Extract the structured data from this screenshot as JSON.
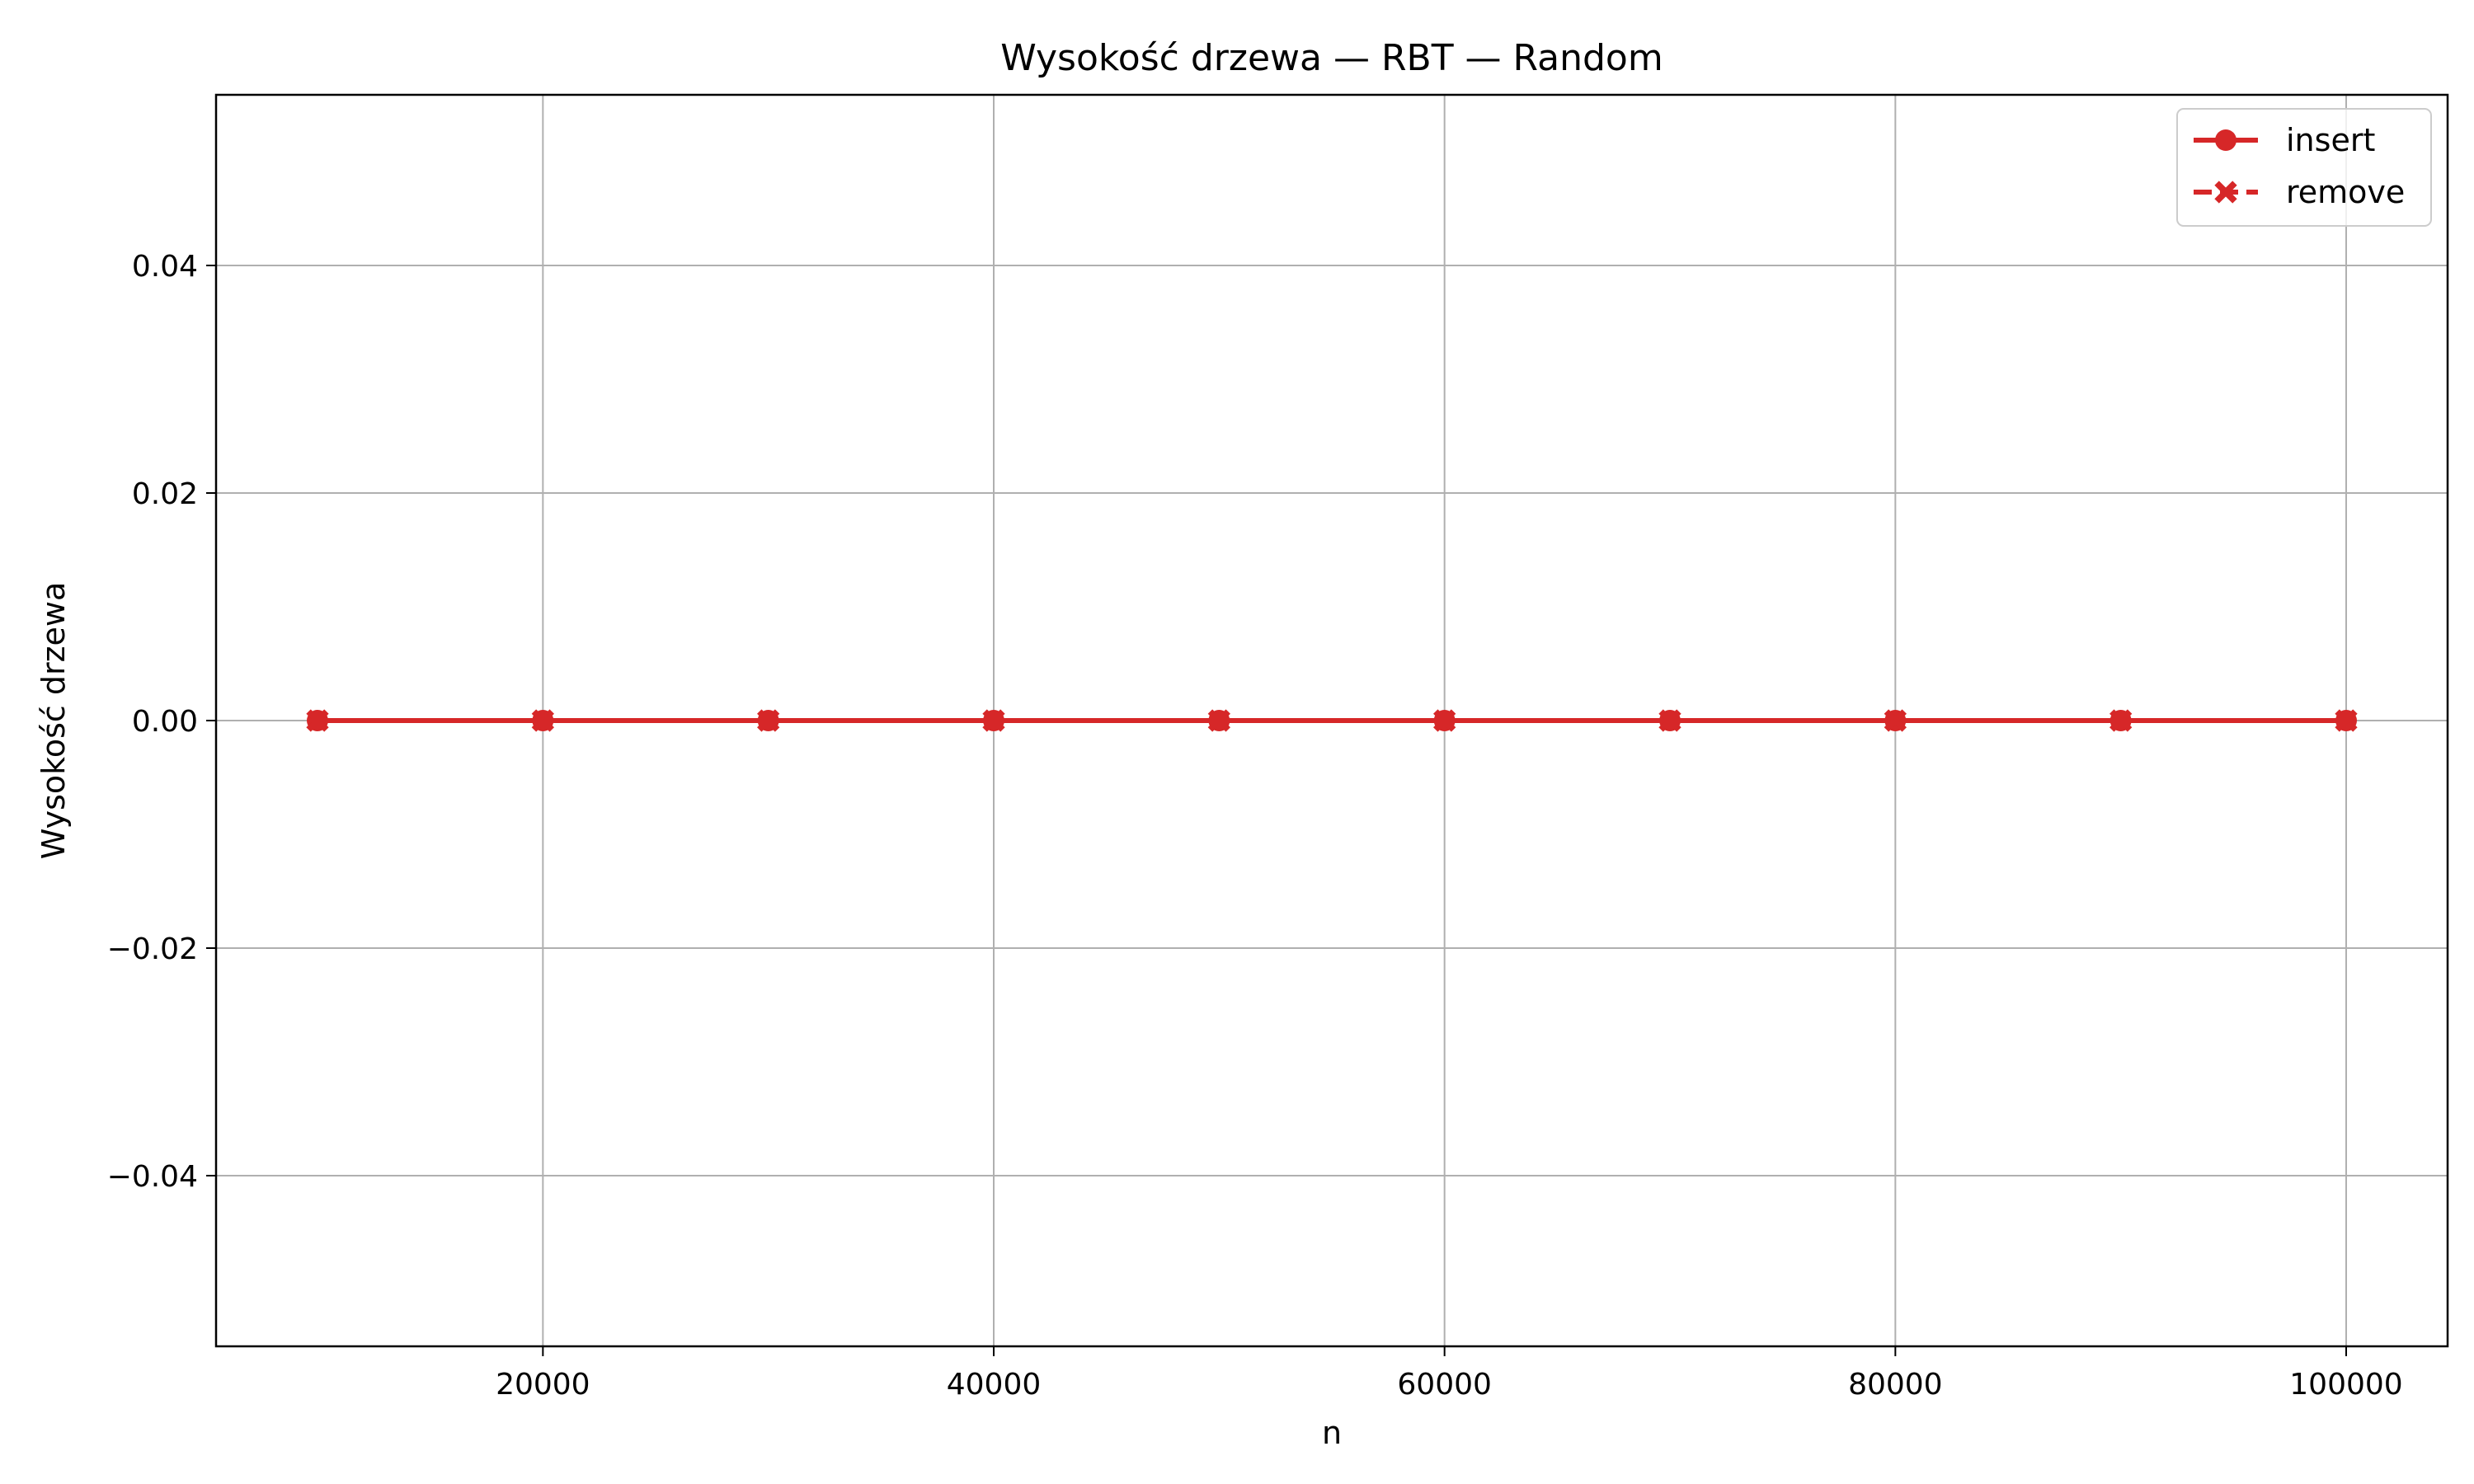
{
  "chart_data": {
    "type": "line",
    "title": "Wysokość drzewa — RBT — Random",
    "xlabel": "n",
    "ylabel": "Wysokość drzewa",
    "xlim": [
      5500,
      104500
    ],
    "ylim": [
      -0.055,
      0.055
    ],
    "xticks": [
      20000,
      40000,
      60000,
      80000,
      100000
    ],
    "xtick_labels": [
      "20000",
      "40000",
      "60000",
      "80000",
      "100000"
    ],
    "yticks": [
      -0.04,
      -0.02,
      0.0,
      0.02,
      0.04
    ],
    "ytick_labels": [
      "−0.04",
      "−0.02",
      "0.00",
      "0.02",
      "0.04"
    ],
    "grid": true,
    "legend_position": "top-right",
    "x": [
      10000,
      20000,
      30000,
      40000,
      50000,
      60000,
      70000,
      80000,
      90000,
      100000
    ],
    "series": [
      {
        "name": "insert",
        "values": [
          0,
          0,
          0,
          0,
          0,
          0,
          0,
          0,
          0,
          0
        ],
        "color": "#d62728",
        "marker": "circle",
        "line_style": "solid"
      },
      {
        "name": "remove",
        "values": [
          0,
          0,
          0,
          0,
          0,
          0,
          0,
          0,
          0,
          0
        ],
        "color": "#d62728",
        "marker": "x-filled",
        "line_style": "dashed"
      }
    ]
  }
}
